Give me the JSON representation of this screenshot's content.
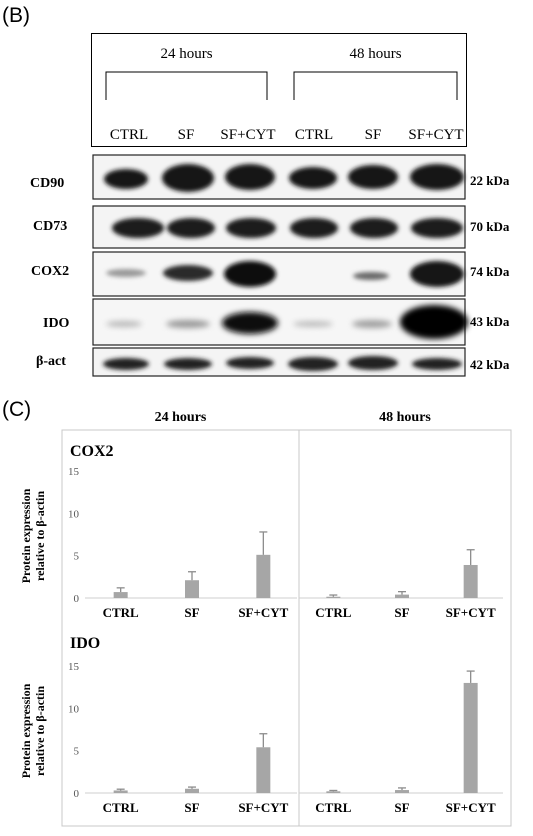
{
  "panel_b": {
    "letter": "(B)",
    "group_labels": [
      "24 hours",
      "48 hours"
    ],
    "lane_labels": [
      "CTRL",
      "SF",
      "SF+CYT",
      "CTRL",
      "SF",
      "SF+CYT"
    ],
    "blots": [
      {
        "name": "CD90",
        "kda": "22 kDa"
      },
      {
        "name": "CD73",
        "kda": "70 kDa"
      },
      {
        "name": "COX2",
        "kda": "74 kDa"
      },
      {
        "name": "IDO",
        "kda": "43 kDa"
      },
      {
        "name": "β-act",
        "kda": "42 kDa"
      }
    ]
  },
  "panel_c": {
    "letter": "(C)",
    "col_headers": [
      "24 hours",
      "48 hours"
    ],
    "ylabel_line1": "Protein expression",
    "ylabel_line2": "relative to β-actin"
  },
  "chart_data": [
    {
      "type": "bar",
      "title": "COX2",
      "group": "24 hours",
      "categories": [
        "CTRL",
        "SF",
        "SF+CYT"
      ],
      "values": [
        0.7,
        2.1,
        5.1
      ],
      "errors": [
        0.5,
        1.0,
        2.7
      ],
      "ylim": [
        0,
        15
      ],
      "yticks": [
        0,
        5,
        10,
        15
      ],
      "ylabel": "Protein expression relative to β-actin",
      "bar_color": "#a6a6a6"
    },
    {
      "type": "bar",
      "title": "",
      "group": "48 hours",
      "categories": [
        "CTRL",
        "SF",
        "SF+CYT"
      ],
      "values": [
        0.15,
        0.4,
        3.9
      ],
      "errors": [
        0.2,
        0.35,
        1.8
      ],
      "ylim": [
        0,
        15
      ],
      "bar_color": "#a6a6a6"
    },
    {
      "type": "bar",
      "title": "IDO",
      "group": "24 hours",
      "categories": [
        "CTRL",
        "SF",
        "SF+CYT"
      ],
      "values": [
        0.3,
        0.5,
        5.4
      ],
      "errors": [
        0.15,
        0.2,
        1.6
      ],
      "ylim": [
        0,
        15
      ],
      "yticks": [
        0,
        5,
        10,
        15
      ],
      "ylabel": "Protein expression relative to β-actin",
      "bar_color": "#a6a6a6"
    },
    {
      "type": "bar",
      "title": "",
      "group": "48 hours",
      "categories": [
        "CTRL",
        "SF",
        "SF+CYT"
      ],
      "values": [
        0.2,
        0.35,
        13.0
      ],
      "errors": [
        0.1,
        0.25,
        1.4
      ],
      "ylim": [
        0,
        15
      ],
      "bar_color": "#a6a6a6"
    }
  ]
}
